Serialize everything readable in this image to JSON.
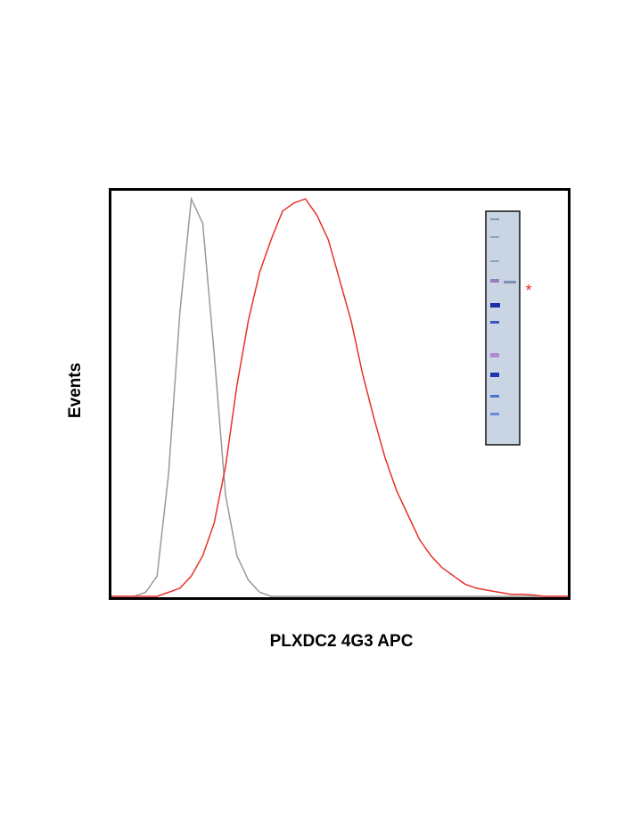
{
  "chart_data": {
    "type": "line",
    "xlabel": "PLXDC2 4G3 APC",
    "ylabel": "Events",
    "annotation": "*",
    "xlim": [
      0,
      100
    ],
    "ylim": [
      0,
      100
    ],
    "x": [
      0,
      2.5,
      5,
      7.5,
      10,
      12.5,
      15,
      17.5,
      20,
      22.5,
      25,
      27.5,
      30,
      32.5,
      35,
      37.5,
      40,
      42.5,
      45,
      47.5,
      50,
      52.5,
      55,
      57.5,
      60,
      62.5,
      65,
      67.5,
      70,
      72.5,
      75,
      77.5,
      80,
      82.5,
      85,
      87.5,
      90,
      92.5,
      95,
      97.5,
      100
    ],
    "series": [
      {
        "color": "#999999",
        "values": [
          0,
          0,
          0,
          1,
          5,
          30,
          70,
          98,
          92,
          60,
          25,
          10,
          4,
          1,
          0,
          0,
          0,
          0,
          0,
          0,
          0,
          0,
          0,
          0,
          0,
          0,
          0,
          0,
          0,
          0,
          0,
          0,
          0,
          0,
          0,
          0,
          0,
          0,
          0,
          0,
          0
        ]
      },
      {
        "color": "#e8312a",
        "values": [
          0,
          0,
          0,
          0,
          0,
          1,
          2,
          5,
          10,
          18,
          32,
          52,
          68,
          80,
          88,
          95,
          97,
          98,
          94,
          88,
          78,
          68,
          55,
          44,
          34,
          26,
          20,
          14,
          10,
          7,
          5,
          3,
          2,
          1.5,
          1,
          0.5,
          0.5,
          0.3,
          0,
          0,
          0
        ]
      }
    ]
  }
}
